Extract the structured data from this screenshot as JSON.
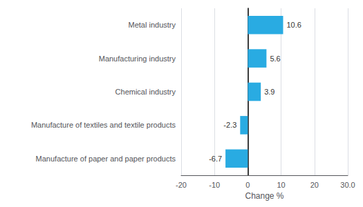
{
  "chart_data": {
    "type": "bar",
    "orientation": "horizontal",
    "xlabel": "Change %",
    "categories": [
      "Manufacture of paper and paper products",
      "Manufacture of textiles and textile products",
      "Chemical industry",
      "Manufacturing industry",
      "Metal industry"
    ],
    "values": [
      -6.7,
      -2.3,
      3.9,
      5.6,
      10.6
    ],
    "color": "#29abe2",
    "xlim": [
      -20,
      30
    ],
    "xticks": [
      -20,
      -10,
      0,
      10,
      20,
      {
        "value": 30,
        "label": "30.0"
      }
    ],
    "grid": true,
    "data_labels": true
  }
}
